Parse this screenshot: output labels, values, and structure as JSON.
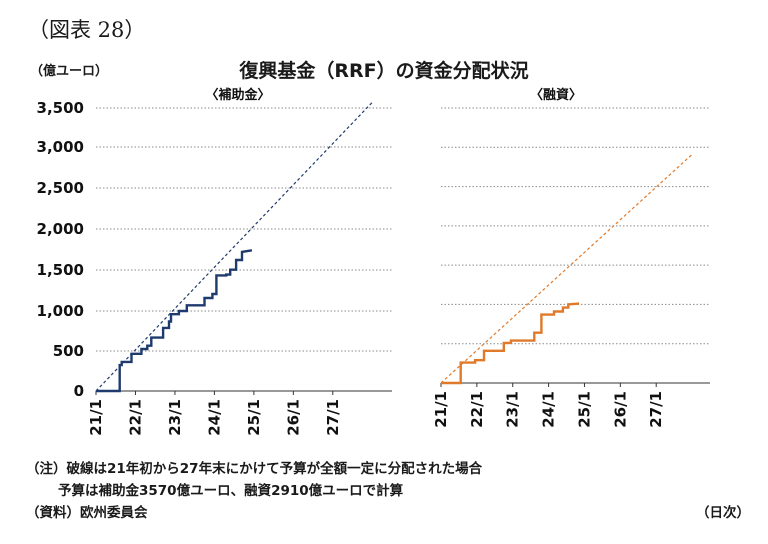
{
  "figure_label": "（図表 28）",
  "title": "復興基金（RRF）の資金分配状況",
  "y_unit": "（億ユーロ）",
  "notes": [
    "（注）破線は21年初から27年末にかけて予算が全額一定に分配された場合",
    "予算は補助金3570億ユーロ、融資2910億ユーロで計算"
  ],
  "source": "（資料）欧州委員会",
  "x_unit": "（日次）",
  "colors": {
    "grants": "#1f3a6e",
    "loans": "#e07a2a",
    "grid": "#8a8a8a"
  },
  "chart_data": [
    {
      "type": "line",
      "title": "〈補助金〉",
      "ylim": [
        0,
        3500
      ],
      "yticks": [
        "0",
        "500",
        "1,000",
        "1,500",
        "2,000",
        "2,500",
        "3,000",
        "3,500"
      ],
      "xlim": [
        2021.0,
        2028.5
      ],
      "xticks": [
        "21/1",
        "22/1",
        "23/1",
        "24/1",
        "25/1",
        "26/1",
        "27/1"
      ],
      "series": [
        {
          "style": "solid",
          "x": [
            2021.0,
            2021.6,
            2021.6,
            2021.65,
            2021.65,
            2021.9,
            2021.9,
            2022.15,
            2022.15,
            2022.3,
            2022.3,
            2022.4,
            2022.4,
            2022.7,
            2022.7,
            2022.85,
            2022.85,
            2022.9,
            2022.9,
            2023.1,
            2023.1,
            2023.3,
            2023.3,
            2023.75,
            2023.75,
            2023.95,
            2023.95,
            2024.05,
            2024.05,
            2024.3,
            2024.3,
            2024.4,
            2024.4,
            2024.55,
            2024.55,
            2024.7,
            2024.7,
            2024.95
          ],
          "y": [
            0,
            0,
            320,
            320,
            360,
            360,
            460,
            460,
            520,
            520,
            560,
            560,
            660,
            660,
            780,
            780,
            860,
            860,
            950,
            950,
            990,
            990,
            1060,
            1060,
            1150,
            1150,
            1200,
            1200,
            1430,
            1430,
            1440,
            1440,
            1500,
            1500,
            1620,
            1620,
            1720,
            1740
          ]
        },
        {
          "style": "dashed",
          "x": [
            2021.0,
            2028.0
          ],
          "y": [
            0,
            3570
          ]
        }
      ]
    },
    {
      "type": "line",
      "title": "〈融資〉",
      "ylim": [
        0,
        3500
      ],
      "xlim": [
        2021.0,
        2028.5
      ],
      "xticks": [
        "21/1",
        "22/1",
        "23/1",
        "24/1",
        "25/1",
        "26/1",
        "27/1"
      ],
      "series": [
        {
          "style": "solid",
          "x": [
            2021.0,
            2021.55,
            2021.55,
            2021.95,
            2021.95,
            2022.2,
            2022.2,
            2022.75,
            2022.75,
            2022.95,
            2022.95,
            2023.6,
            2023.6,
            2023.8,
            2023.8,
            2024.15,
            2024.15,
            2024.4,
            2024.4,
            2024.55,
            2024.55,
            2024.85
          ],
          "y": [
            0,
            0,
            260,
            260,
            290,
            290,
            410,
            410,
            510,
            510,
            540,
            540,
            640,
            640,
            870,
            870,
            910,
            910,
            960,
            960,
            1000,
            1010
          ]
        },
        {
          "style": "dashed",
          "x": [
            2021.0,
            2028.0
          ],
          "y": [
            0,
            2910
          ]
        }
      ]
    }
  ]
}
